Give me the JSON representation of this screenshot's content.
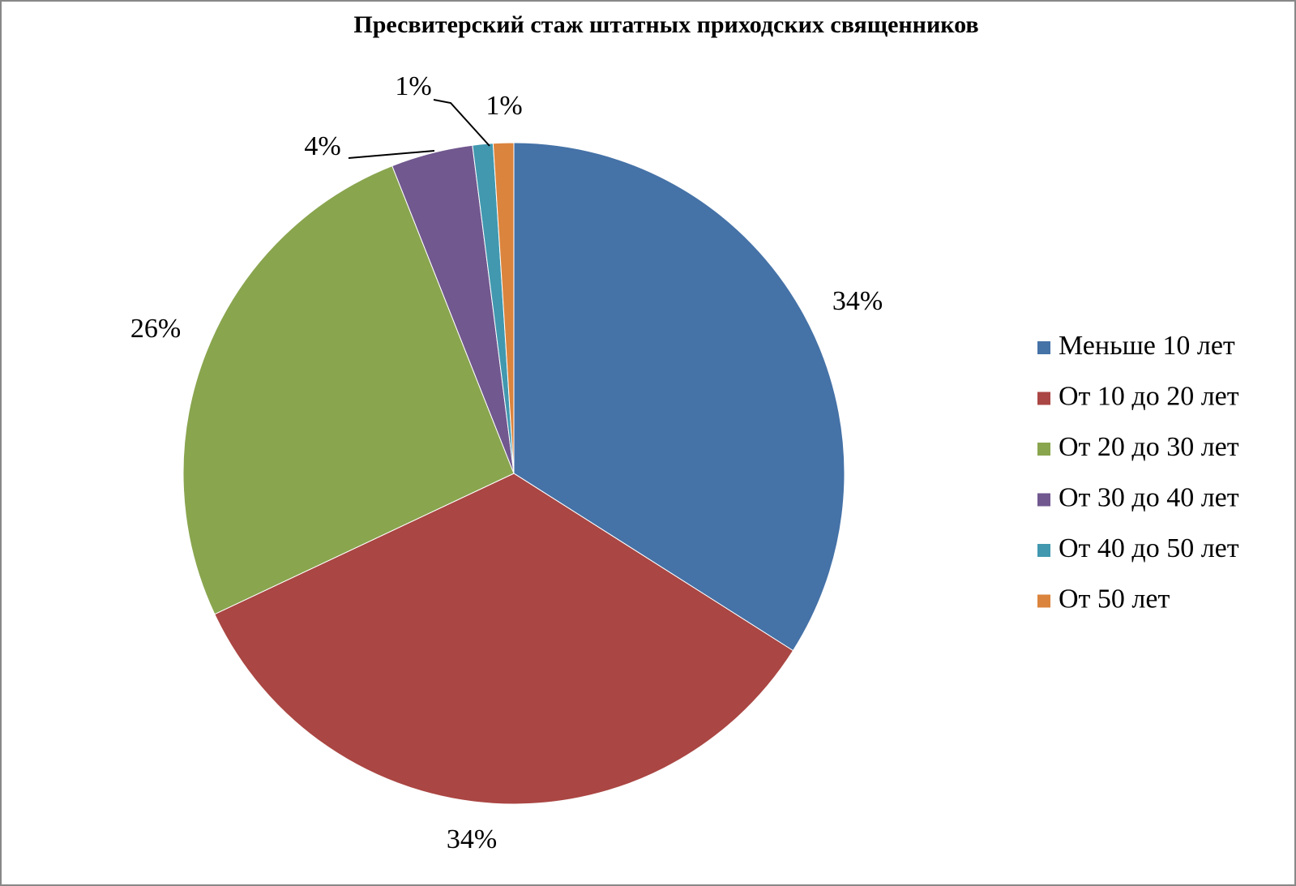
{
  "chart_data": {
    "type": "pie",
    "title": "Пресвитерский стаж штатных приходских священников",
    "categories": [
      "Меньше 10 лет",
      "От 10 до 20 лет",
      "От 20 до 30 лет",
      "От 30 до 40 лет",
      "От 40 до 50 лет",
      "От 50 лет"
    ],
    "values": [
      34,
      34,
      26,
      4,
      1,
      1
    ],
    "value_labels": [
      "34%",
      "34%",
      "26%",
      "4%",
      "1%",
      "1%"
    ],
    "colors": [
      "#4572a7",
      "#aa4643",
      "#89a54e",
      "#71588f",
      "#4198af",
      "#db843d"
    ],
    "legend": "right"
  }
}
